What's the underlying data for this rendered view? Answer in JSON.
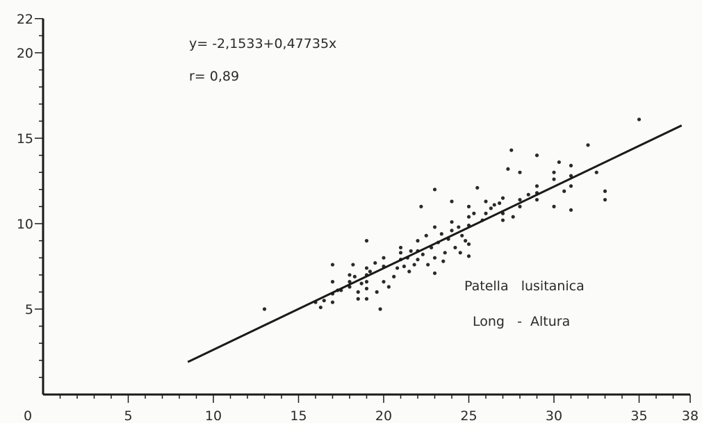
{
  "chart_data": {
    "type": "scatter",
    "title": "",
    "xlabel": "",
    "ylabel": "",
    "xlim": [
      0,
      38
    ],
    "ylim": [
      0,
      22
    ],
    "x_ticks": [
      0,
      5,
      10,
      15,
      20,
      25,
      30,
      35,
      38
    ],
    "y_ticks": [
      5,
      10,
      15,
      20,
      22
    ],
    "grid": false,
    "annotations": {
      "equation": "y= -2,1533+0,47735x",
      "r_value": "r= 0,89",
      "species": "Patella   lusitanica",
      "measure": "Long   -  Altura"
    },
    "regression": {
      "intercept": -2.1533,
      "slope": 0.47735,
      "x_range": [
        8.5,
        37.5
      ]
    },
    "series": [
      {
        "points": [
          [
            13,
            5.0
          ],
          [
            16,
            5.4
          ],
          [
            16.3,
            5.1
          ],
          [
            16.5,
            5.5
          ],
          [
            17,
            5.4
          ],
          [
            17,
            5.9
          ],
          [
            17,
            6.6
          ],
          [
            17,
            7.6
          ],
          [
            17.3,
            6.1
          ],
          [
            17.5,
            6.1
          ],
          [
            18,
            6.3
          ],
          [
            18,
            6.6
          ],
          [
            18,
            7.0
          ],
          [
            18.2,
            7.6
          ],
          [
            18.3,
            6.9
          ],
          [
            18.5,
            5.6
          ],
          [
            18.5,
            6.0
          ],
          [
            18.7,
            6.5
          ],
          [
            19,
            5.6
          ],
          [
            19,
            6.2
          ],
          [
            19,
            6.6
          ],
          [
            19,
            7.0
          ],
          [
            19,
            7.4
          ],
          [
            19,
            9.0
          ],
          [
            19.2,
            7.2
          ],
          [
            19.5,
            7.7
          ],
          [
            19.6,
            6.0
          ],
          [
            19.8,
            5.0
          ],
          [
            20,
            6.6
          ],
          [
            20,
            7.5
          ],
          [
            20,
            8.0
          ],
          [
            20.3,
            6.3
          ],
          [
            20.6,
            6.9
          ],
          [
            20.8,
            7.4
          ],
          [
            21,
            7.9
          ],
          [
            21,
            8.3
          ],
          [
            21,
            8.6
          ],
          [
            21.2,
            7.5
          ],
          [
            21.4,
            8.0
          ],
          [
            21.5,
            7.2
          ],
          [
            21.6,
            8.4
          ],
          [
            21.8,
            7.6
          ],
          [
            22,
            7.9
          ],
          [
            22,
            8.4
          ],
          [
            22,
            9.0
          ],
          [
            22.2,
            11.0
          ],
          [
            22.3,
            8.2
          ],
          [
            22.5,
            9.3
          ],
          [
            22.6,
            7.6
          ],
          [
            22.8,
            8.6
          ],
          [
            23,
            7.1
          ],
          [
            23,
            8.0
          ],
          [
            23,
            9.8
          ],
          [
            23,
            12.0
          ],
          [
            23.2,
            8.9
          ],
          [
            23.4,
            9.4
          ],
          [
            23.5,
            7.8
          ],
          [
            23.6,
            8.3
          ],
          [
            23.8,
            9.1
          ],
          [
            24,
            9.6
          ],
          [
            24,
            10.1
          ],
          [
            24,
            11.3
          ],
          [
            24.2,
            8.6
          ],
          [
            24.4,
            9.8
          ],
          [
            24.5,
            8.3
          ],
          [
            24.6,
            9.3
          ],
          [
            24.8,
            9.0
          ],
          [
            25,
            8.1
          ],
          [
            25,
            8.8
          ],
          [
            25,
            9.9
          ],
          [
            25,
            10.4
          ],
          [
            25,
            11.0
          ],
          [
            25.3,
            10.6
          ],
          [
            25.5,
            12.1
          ],
          [
            25.8,
            10.2
          ],
          [
            26,
            10.6
          ],
          [
            26,
            11.3
          ],
          [
            26.3,
            10.9
          ],
          [
            26.5,
            11.1
          ],
          [
            26.8,
            11.2
          ],
          [
            27,
            10.2
          ],
          [
            27,
            10.6
          ],
          [
            27,
            11.5
          ],
          [
            27.3,
            13.2
          ],
          [
            27.5,
            14.3
          ],
          [
            27.6,
            10.4
          ],
          [
            28,
            11.0
          ],
          [
            28,
            11.4
          ],
          [
            28,
            13.0
          ],
          [
            28.5,
            11.7
          ],
          [
            29,
            11.4
          ],
          [
            29,
            11.8
          ],
          [
            29,
            12.2
          ],
          [
            29,
            14.0
          ],
          [
            30,
            11.0
          ],
          [
            30,
            12.6
          ],
          [
            30,
            13.0
          ],
          [
            30.3,
            13.6
          ],
          [
            30.6,
            11.9
          ],
          [
            31,
            10.8
          ],
          [
            31,
            12.2
          ],
          [
            31,
            12.8
          ],
          [
            31,
            13.4
          ],
          [
            32,
            14.6
          ],
          [
            32.5,
            13.0
          ],
          [
            33,
            11.4
          ],
          [
            33,
            11.9
          ],
          [
            35,
            16.1
          ]
        ]
      }
    ]
  }
}
